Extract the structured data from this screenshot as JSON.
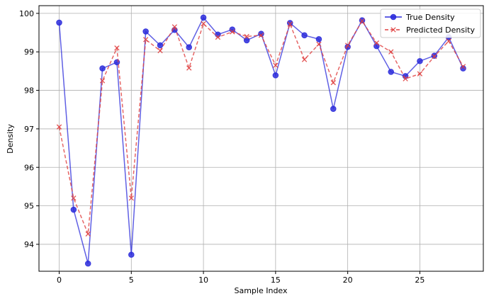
{
  "chart_data": {
    "type": "line",
    "title": "",
    "xlabel": "Sample Index",
    "ylabel": "Density",
    "xlim": [
      -1.4,
      29.4
    ],
    "ylim": [
      93.3,
      100.2
    ],
    "xticks": [
      0,
      5,
      10,
      15,
      20,
      25
    ],
    "yticks": [
      94,
      95,
      96,
      97,
      98,
      99,
      100
    ],
    "grid": true,
    "legend_position": "top-right",
    "x": [
      0,
      1,
      2,
      3,
      4,
      5,
      6,
      7,
      8,
      9,
      10,
      11,
      12,
      13,
      14,
      15,
      16,
      17,
      18,
      19,
      20,
      21,
      22,
      23,
      24,
      25,
      26,
      27,
      28
    ],
    "series": [
      {
        "name": "True Density",
        "color": "#2b2bdb",
        "style": "solid",
        "marker": "circle",
        "values": [
          99.76,
          94.9,
          93.5,
          98.57,
          98.73,
          93.73,
          99.53,
          99.17,
          99.57,
          99.12,
          99.89,
          99.45,
          99.58,
          99.3,
          99.47,
          98.39,
          99.75,
          99.43,
          99.33,
          97.52,
          99.13,
          99.82,
          99.15,
          98.48,
          98.37,
          98.76,
          98.9,
          99.38,
          98.57
        ]
      },
      {
        "name": "Predicted Density",
        "color": "#e04040",
        "style": "dashed",
        "marker": "x",
        "values": [
          97.05,
          95.2,
          94.27,
          98.25,
          99.1,
          95.2,
          99.32,
          99.03,
          99.65,
          98.58,
          99.73,
          99.38,
          99.52,
          99.4,
          99.43,
          98.65,
          99.72,
          98.8,
          99.2,
          98.2,
          99.17,
          99.8,
          99.23,
          99.0,
          98.3,
          98.43,
          98.88,
          99.28,
          98.62
        ]
      }
    ]
  }
}
